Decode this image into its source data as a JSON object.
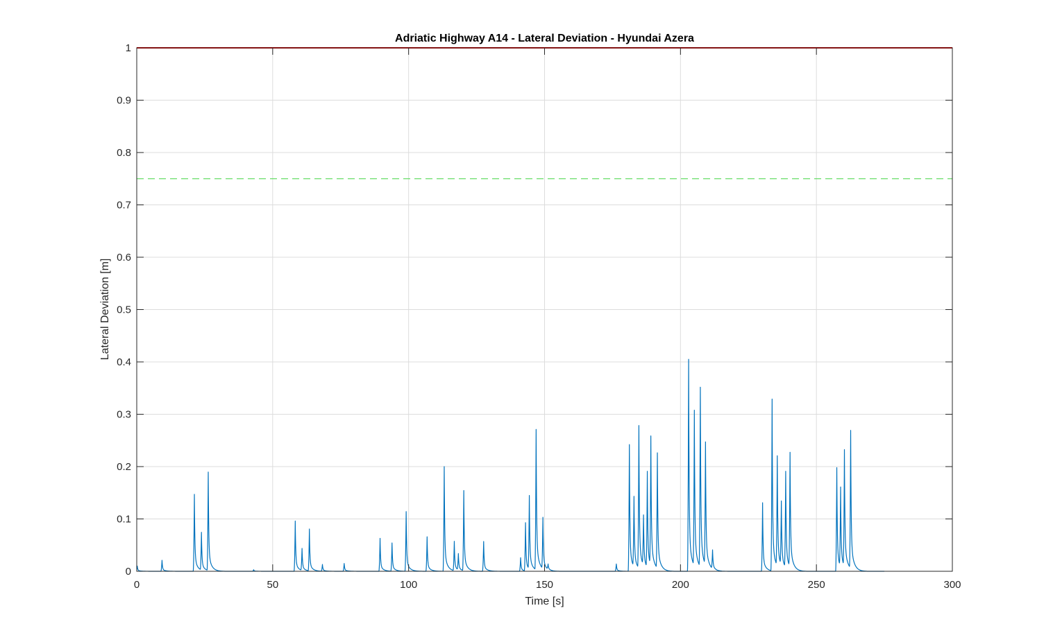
{
  "chart_data": {
    "type": "line",
    "title": "Adriatic Highway A14 - Lateral Deviation - Hyundai Azera",
    "xlabel": "Time [s]",
    "ylabel": "Lateral Deviation [m]",
    "xlim": [
      0,
      300
    ],
    "ylim": [
      0,
      1
    ],
    "xticks": [
      0,
      50,
      100,
      150,
      200,
      250,
      300
    ],
    "yticks": [
      0,
      0.1,
      0.2,
      0.3,
      0.4,
      0.5,
      0.6,
      0.7,
      0.8,
      0.9,
      1
    ],
    "grid": true,
    "legend": "none",
    "colors": {
      "deviation": "#0072BD",
      "limit": "#E00000",
      "threshold": "#66DD66",
      "grid": "#DCDCDC",
      "axes": "#262626"
    },
    "reference_lines": [
      {
        "y": 1.0,
        "style": "solid",
        "color": "#E00000"
      },
      {
        "y": 0.75,
        "style": "dashed",
        "color": "#66DD66"
      }
    ],
    "series": [
      {
        "x_end": 275,
        "peaks": [
          [
            0.2,
            0.01
          ],
          [
            9.3,
            0.021
          ],
          [
            21.2,
            0.147
          ],
          [
            23.8,
            0.072
          ],
          [
            26.3,
            0.188
          ],
          [
            43,
            0.003
          ],
          [
            58.3,
            0.096
          ],
          [
            60.8,
            0.042
          ],
          [
            63.5,
            0.08
          ],
          [
            68.3,
            0.013
          ],
          [
            76.3,
            0.015
          ],
          [
            89.5,
            0.063
          ],
          [
            93.9,
            0.054
          ],
          [
            99.1,
            0.114
          ],
          [
            106.8,
            0.066
          ],
          [
            113.1,
            0.2
          ],
          [
            116.8,
            0.056
          ],
          [
            118.3,
            0.031
          ],
          [
            120.3,
            0.153
          ],
          [
            127.6,
            0.057
          ],
          [
            141.2,
            0.026
          ],
          [
            143,
            0.092
          ],
          [
            144.4,
            0.14
          ],
          [
            146.9,
            0.268
          ],
          [
            149.4,
            0.098
          ],
          [
            151.3,
            0.01
          ],
          [
            176.4,
            0.014
          ],
          [
            181.2,
            0.242
          ],
          [
            182.9,
            0.134
          ],
          [
            184.7,
            0.272
          ],
          [
            186.4,
            0.096
          ],
          [
            187.8,
            0.183
          ],
          [
            189.1,
            0.246
          ],
          [
            191.5,
            0.22
          ],
          [
            203,
            0.405
          ],
          [
            205.1,
            0.297
          ],
          [
            207.3,
            0.343
          ],
          [
            209.2,
            0.235
          ],
          [
            211.8,
            0.036
          ],
          [
            230.2,
            0.131
          ],
          [
            233.7,
            0.328
          ],
          [
            235.6,
            0.21
          ],
          [
            237.1,
            0.122
          ],
          [
            238.7,
            0.183
          ],
          [
            240.3,
            0.218
          ],
          [
            257.5,
            0.198
          ],
          [
            258.9,
            0.151
          ],
          [
            260.3,
            0.222
          ],
          [
            262.6,
            0.263
          ]
        ]
      }
    ]
  }
}
